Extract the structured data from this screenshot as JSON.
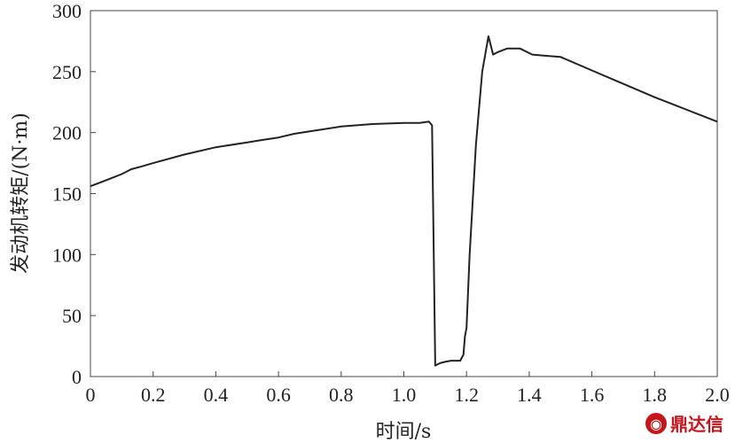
{
  "chart_data": {
    "type": "line",
    "title": "",
    "xlabel": "时间/s",
    "ylabel": "发动机转矩/(N·m)",
    "xlim": [
      0,
      2.0
    ],
    "ylim": [
      0,
      300
    ],
    "xticks": [
      "0",
      "0.2",
      "0.4",
      "0.6",
      "0.8",
      "1.0",
      "1.2",
      "1.4",
      "1.6",
      "1.8",
      "2.0"
    ],
    "yticks": [
      "0",
      "50",
      "100",
      "150",
      "200",
      "250",
      "300"
    ],
    "grid": false,
    "line_color": "#222222",
    "series": [
      {
        "x": [
          0,
          0.05,
          0.1,
          0.13,
          0.16,
          0.2,
          0.3,
          0.4,
          0.5,
          0.55,
          0.6,
          0.65,
          0.7,
          0.8,
          0.9,
          1.0,
          1.05,
          1.08,
          1.09,
          1.1,
          1.115,
          1.13,
          1.15,
          1.18,
          1.19,
          1.195,
          1.2,
          1.21,
          1.23,
          1.25,
          1.27,
          1.285,
          1.3,
          1.33,
          1.37,
          1.41,
          1.45,
          1.5,
          1.6,
          1.7,
          1.8,
          1.9,
          2.0
        ],
        "y": [
          156,
          161,
          166,
          170,
          172,
          175,
          182,
          188,
          192,
          194,
          196,
          199,
          201,
          205,
          207,
          208,
          208,
          209,
          206,
          9,
          11,
          12,
          13,
          13,
          18,
          33,
          40,
          100,
          190,
          250,
          279,
          264,
          266,
          269,
          269,
          264,
          263,
          262,
          251,
          240,
          229,
          219,
          209
        ]
      }
    ]
  },
  "watermark": {
    "text": "鼎达信",
    "logo_glyph": "◉",
    "color": "#c4161c"
  }
}
